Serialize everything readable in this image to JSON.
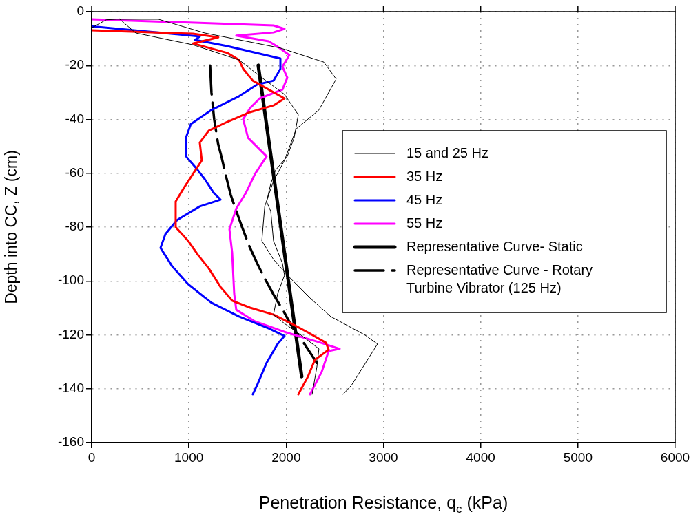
{
  "chart_data": {
    "type": "line",
    "xlabel": "Penetration Resistance, q$_{c}$ (kPa)",
    "ylabel": "Depth into CC, Z (cm)",
    "xlim": [
      0,
      6000
    ],
    "xticks": [
      0,
      1000,
      2000,
      3000,
      4000,
      5000,
      6000
    ],
    "ylim": [
      -160,
      0
    ],
    "yticks": [
      -160,
      -140,
      -120,
      -100,
      -80,
      -60,
      -40,
      -20,
      0
    ],
    "grid": true,
    "legend": "right",
    "series": [
      {
        "name": "15 and 25 Hz",
        "color": "#000000",
        "x": [
          0,
          150,
          262,
          687,
          1162,
          1941,
          2387,
          2514,
          2337,
          2104,
          1983,
          1870,
          1780,
          1750,
          1870,
          2033,
          2245,
          2458,
          2812,
          2939,
          2791,
          2670,
          2585
        ],
        "values": [
          -6,
          -3,
          -2.8,
          -2.8,
          -7.9,
          -13.5,
          -18.7,
          -25,
          -36.5,
          -43.5,
          -55.2,
          -62.9,
          -72.3,
          -85.1,
          -92,
          -98.6,
          -106.3,
          -113.2,
          -120.1,
          -123.4,
          -131.9,
          -138.8,
          -142.1
        ]
      },
      {
        "color": "#000000",
        "x": [
          283,
          453,
          1041,
          1516,
          1750,
          1983,
          2125,
          2082,
          2012,
          1891,
          1842,
          1799,
          1842,
          1870,
          1962,
          1983,
          1912,
          1870,
          1983,
          2153,
          2337,
          2316,
          2267
        ],
        "values": [
          -2.6,
          -7.9,
          -12.3,
          -17.9,
          -24.5,
          -30.7,
          -38.3,
          -46.8,
          -53.7,
          -58.8,
          -63.9,
          -70.5,
          -74.1,
          -85.1,
          -93.5,
          -97.9,
          -104.8,
          -112.5,
          -115.8,
          -120.1,
          -125.2,
          -131.9,
          -142.1
        ]
      },
      {
        "name": "35 Hz",
        "color": "#ff0000",
        "x": [
          0,
          1041,
          1303,
          1041,
          1395,
          1516,
          1558,
          1657,
          1820,
          1983,
          1870,
          1629,
          1395,
          1204,
          1112,
          1133,
          1041,
          949,
          864,
          864,
          992,
          1091,
          1204,
          1325,
          1445,
          1629,
          1870,
          2054,
          2224,
          2408,
          2437,
          2295,
          2224,
          2125
        ],
        "values": [
          -6.9,
          -8.2,
          -9.5,
          -11.8,
          -15.3,
          -17.9,
          -21.2,
          -25.6,
          -28.9,
          -32.2,
          -34.8,
          -37.3,
          -40.9,
          -44.2,
          -48.6,
          -55.2,
          -60.3,
          -65.4,
          -70.5,
          -80,
          -85.1,
          -90.2,
          -95.3,
          -102.2,
          -107.3,
          -109.9,
          -112.5,
          -115.8,
          -119.1,
          -122.9,
          -125.5,
          -129.3,
          -135.5,
          -142.1
        ]
      },
      {
        "name": "45 Hz",
        "color": "#0000ff",
        "x": [
          0,
          1112,
          1062,
          1395,
          1728,
          1941,
          1941,
          1870,
          1700,
          1516,
          1232,
          1020,
          970,
          970,
          1091,
          1162,
          1254,
          1325,
          1112,
          878,
          758,
          708,
          829,
          992,
          1232,
          1516,
          1820,
          1983,
          1912,
          1799,
          1700,
          1657
        ],
        "values": [
          -5.4,
          -9.2,
          -10.5,
          -12.8,
          -15.6,
          -17.4,
          -21.2,
          -25.6,
          -27.1,
          -31.4,
          -36.5,
          -41.7,
          -46.8,
          -53.7,
          -58.8,
          -62.1,
          -67.2,
          -69.8,
          -72.3,
          -77.4,
          -82.6,
          -87.7,
          -94.6,
          -101.2,
          -108.1,
          -113.2,
          -117.6,
          -120.4,
          -123.4,
          -130.4,
          -138.8,
          -142.1
        ]
      },
      {
        "name": "55 Hz",
        "color": "#ff00ff",
        "x": [
          0,
          1870,
          1983,
          1870,
          1487,
          1820,
          1912,
          2033,
          1962,
          2012,
          1962,
          1728,
          1629,
          1558,
          1608,
          1799,
          1679,
          1587,
          1487,
          1417,
          1445,
          1466,
          1487,
          1679,
          1983,
          2337,
          2550,
          2437,
          2366,
          2245
        ],
        "values": [
          -2.8,
          -5.1,
          -6.4,
          -7.7,
          -8.9,
          -11,
          -13,
          -16.1,
          -20.4,
          -24.5,
          -28.9,
          -32.2,
          -35.8,
          -39.9,
          -46.8,
          -53.7,
          -60.3,
          -67.2,
          -73.1,
          -80.8,
          -89.5,
          -104.8,
          -110.7,
          -115,
          -118.9,
          -122.7,
          -125.2,
          -126,
          -133.7,
          -142.1
        ]
      },
      {
        "name": "Representative Curve- Static",
        "color": "#000000",
        "x": [
          1713,
          2160
        ],
        "values": [
          -19.9,
          -135.5
        ]
      },
      {
        "name": "Representative Curve - Rotary Turbine Vibrator (125 Hz)",
        "color": "#000000",
        "line_style": "dashed",
        "x": [
          1218,
          1232,
          1260,
          1300,
          1339,
          1374,
          1430,
          1487,
          1537,
          1620,
          1700,
          1764,
          1870,
          1976,
          2054,
          2180,
          2316
        ],
        "values": [
          -20,
          -30,
          -40,
          -49,
          -54.4,
          -60,
          -68,
          -74,
          -79,
          -87,
          -93.3,
          -98,
          -105,
          -111.4,
          -116.5,
          -123,
          -130.4
        ]
      }
    ]
  }
}
